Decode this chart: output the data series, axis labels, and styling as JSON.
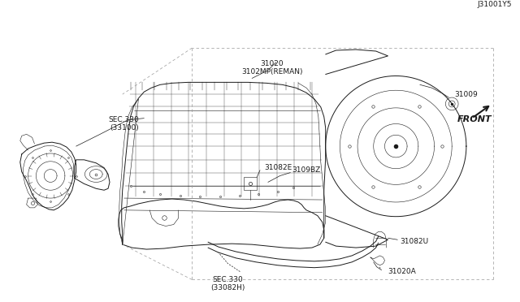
{
  "bg_color": "#ffffff",
  "lc": "#1a1a1a",
  "glc": "#999999",
  "diagram_id": "J31001Y5",
  "labels": {
    "SEC330_33082H": "SEC.330\n(33082H)",
    "31020A": "31020A",
    "31082U": "31082U",
    "31082E": "31082E",
    "3109BZ": "3109BZ",
    "SEC330_33100": "SEC.330\n(33100)",
    "31020": "31020\n3102MP(REMAN)",
    "31009": "31009",
    "FRONT": "FRONT"
  },
  "fs": 6.5,
  "fs_front": 8
}
